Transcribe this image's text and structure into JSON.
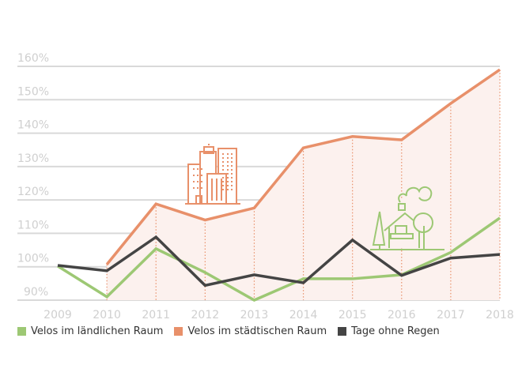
{
  "chart_data": {
    "type": "line",
    "x": [
      "2009",
      "2010",
      "2011",
      "2012",
      "2013",
      "2014",
      "2015",
      "2016",
      "2017",
      "2018"
    ],
    "yticks": [
      "90%",
      "100%",
      "110%",
      "120%",
      "130%",
      "140%",
      "150%",
      "160%"
    ],
    "ytick_values": [
      90,
      100,
      110,
      120,
      130,
      140,
      150,
      160
    ],
    "ylim": [
      90,
      160
    ],
    "grid": true,
    "legend_position": "bottom",
    "series": [
      {
        "name": "Velos im ländlichen Raum",
        "color": "#9dc874",
        "values": [
          100.2,
          91,
          105.4,
          98.3,
          90,
          96.4,
          96.4,
          97.6,
          104.3,
          114.6
        ]
      },
      {
        "name": "Velos im städtischen Raum",
        "color": "#e8906a",
        "area_fill": "#fcf1ee",
        "values": [
          null,
          100.7,
          118.8,
          114,
          117.6,
          135.6,
          139,
          138,
          148.9,
          159
        ]
      },
      {
        "name": "Tage ohne Regen",
        "color": "#444444",
        "values": [
          100.4,
          98.8,
          108.9,
          94.4,
          97.6,
          95.2,
          108,
          97.4,
          102.6,
          103.7
        ]
      }
    ],
    "icons": [
      "city-buildings-icon",
      "rural-house-icon"
    ]
  }
}
